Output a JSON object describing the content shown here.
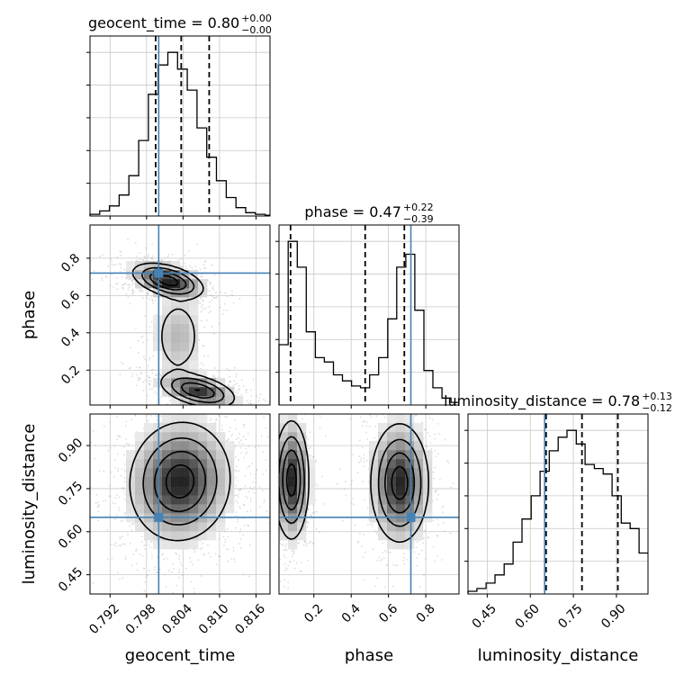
{
  "chart_data": {
    "type": "corner",
    "parameters": [
      "geocent_time",
      "phase",
      "luminosity_distance"
    ],
    "ranges": {
      "geocent_time": [
        0.7887,
        0.8183
      ],
      "phase": [
        0.013,
        0.978
      ],
      "luminosity_distance": [
        0.383,
        1.01
      ]
    },
    "ticks": {
      "geocent_time": [
        "0.792",
        "0.798",
        "0.804",
        "0.810",
        "0.816"
      ],
      "phase": [
        "0.2",
        "0.4",
        "0.6",
        "0.8"
      ],
      "luminosity_distance": [
        "0.45",
        "0.60",
        "0.75",
        "0.90"
      ]
    },
    "truths": {
      "geocent_time": 0.8,
      "phase": 0.72,
      "luminosity_distance": 0.65
    },
    "truth_color": "#4682b4",
    "grid": true,
    "diagonal": [
      {
        "param": "geocent_time",
        "title": "geocent_time = 0.80",
        "sup": "+0.00",
        "sub": "−0.00",
        "quantiles": [
          0.7995,
          0.8037,
          0.8083
        ],
        "bin_edges": [
          0.7887,
          0.7903,
          0.7919,
          0.7935,
          0.7951,
          0.7967,
          0.7983,
          0.7999,
          0.8015,
          0.8031,
          0.8047,
          0.8063,
          0.8079,
          0.8095,
          0.8111,
          0.8127,
          0.8143,
          0.8159,
          0.8175,
          0.8183
        ],
        "counts": [
          2,
          6,
          12,
          25,
          48,
          90,
          145,
          180,
          195,
          175,
          150,
          105,
          70,
          42,
          22,
          10,
          4,
          2,
          1
        ]
      },
      {
        "param": "phase",
        "title": "phase = 0.47",
        "sup": "+0.22",
        "sub": "−0.39",
        "quantiles": [
          0.075,
          0.475,
          0.685
        ],
        "bin_edges": [
          0.013,
          0.062,
          0.111,
          0.159,
          0.208,
          0.256,
          0.305,
          0.353,
          0.402,
          0.45,
          0.499,
          0.547,
          0.596,
          0.644,
          0.693,
          0.741,
          0.79,
          0.838,
          0.887,
          0.935,
          0.978
        ],
        "counts": [
          70,
          190,
          160,
          85,
          55,
          50,
          35,
          28,
          22,
          20,
          35,
          55,
          100,
          160,
          175,
          110,
          40,
          20,
          8,
          3
        ]
      },
      {
        "param": "luminosity_distance",
        "title": "luminosity_distance = 0.78",
        "sup": "+0.13",
        "sub": "−0.12",
        "quantiles": [
          0.655,
          0.78,
          0.905
        ],
        "bin_edges": [
          0.383,
          0.414,
          0.446,
          0.477,
          0.509,
          0.54,
          0.571,
          0.603,
          0.634,
          0.666,
          0.697,
          0.728,
          0.76,
          0.791,
          0.823,
          0.854,
          0.885,
          0.917,
          0.948,
          0.979,
          1.01
        ],
        "counts": [
          2,
          4,
          8,
          14,
          22,
          38,
          55,
          72,
          90,
          105,
          115,
          120,
          110,
          95,
          92,
          88,
          72,
          52,
          48,
          30
        ]
      }
    ],
    "panels_2d": [
      {
        "x": "geocent_time",
        "y": "phase",
        "modes": [
          {
            "x": 0.8015,
            "y": 0.68,
            "sx": 0.0028,
            "sy": 0.045,
            "rho": -0.45,
            "w": 1.0
          },
          {
            "x": 0.8065,
            "y": 0.09,
            "sx": 0.003,
            "sy": 0.045,
            "rho": -0.45,
            "w": 0.85
          },
          {
            "x": 0.8032,
            "y": 0.38,
            "sx": 0.0022,
            "sy": 0.12,
            "rho": 0.0,
            "w": 0.25
          }
        ]
      },
      {
        "x": "geocent_time",
        "y": "luminosity_distance",
        "modes": [
          {
            "x": 0.8035,
            "y": 0.775,
            "sx": 0.004,
            "sy": 0.1,
            "rho": 0.05,
            "w": 1.0
          }
        ]
      },
      {
        "x": "phase",
        "y": "luminosity_distance",
        "modes": [
          {
            "x": 0.08,
            "y": 0.78,
            "sx": 0.045,
            "sy": 0.1,
            "rho": 0.0,
            "w": 1.0
          },
          {
            "x": 0.66,
            "y": 0.77,
            "sx": 0.075,
            "sy": 0.1,
            "rho": 0.0,
            "w": 1.0
          }
        ]
      }
    ]
  }
}
